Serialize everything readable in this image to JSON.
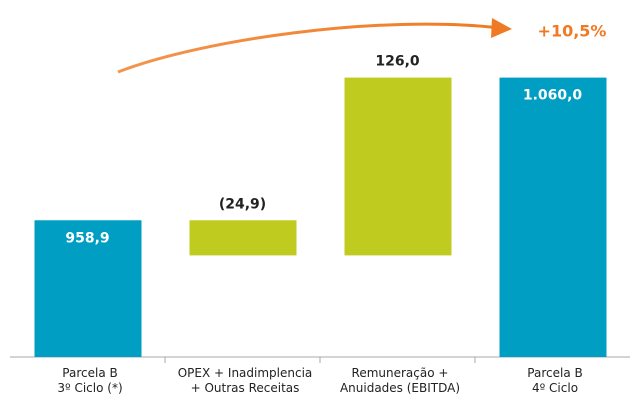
{
  "chart_data": {
    "type": "waterfall",
    "categories": [
      "Parcela B\n3º Ciclo (*)",
      "OPEX + Inadimplencia\n+ Outras Receitas",
      "Remuneração +\nAnuidades (EBITDA)",
      "Parcela B\n4º Ciclo"
    ],
    "values": [
      958.9,
      -24.9,
      126.0,
      1060.0
    ],
    "value_labels": [
      "958,9",
      "(24,9)",
      "126,0",
      "1.060,0"
    ],
    "measure": [
      "absolute",
      "relative",
      "relative",
      "total"
    ],
    "total_color": "#009ec3",
    "delta_color": "#bfcb1e",
    "ylim": [
      862,
      1115
    ],
    "annotation": "+10,5%",
    "annotation_color": "#f07a23"
  }
}
